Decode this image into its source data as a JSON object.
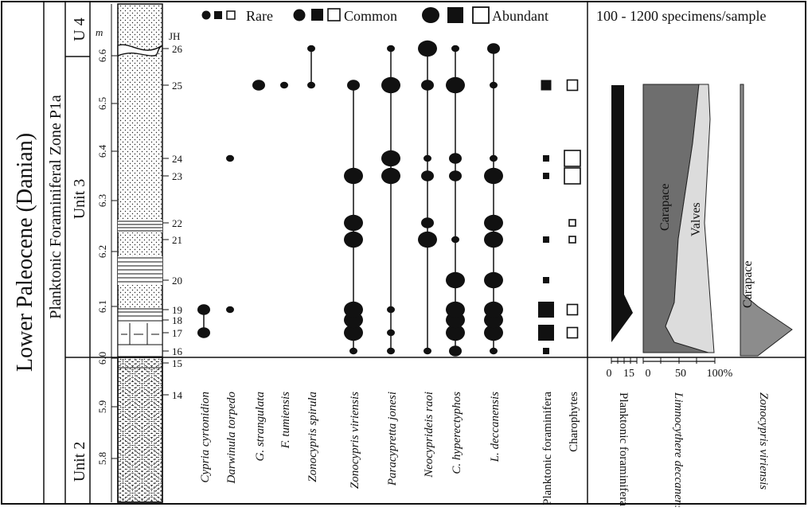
{
  "labels": {
    "epoch": "Lower Paleocene (Danian)",
    "zone": "Planktonic Foraminiferal Zone P1a",
    "unit2": "Unit 2",
    "unit3": "Unit 3",
    "unit4": "U 4",
    "meter_unit": "m",
    "jh": "JH",
    "legend_rare": "Rare",
    "legend_common": "Common",
    "legend_abundant": "Abundant",
    "specimens": "100 - 1200 specimens/sample",
    "carapace1": "Carapace",
    "valves": "Valves",
    "carapace2": "Carapace"
  },
  "depth_ticks": [
    "6.6",
    "6.5",
    "6.4",
    "6.3",
    "6.2",
    "6.1",
    "6.0",
    "5.9",
    "5.8"
  ],
  "samples": [
    "26",
    "25",
    "24",
    "23",
    "22",
    "21",
    "20",
    "19",
    "18",
    "17",
    "16",
    "15",
    "14"
  ],
  "taxa": [
    "Cypria cyrtonidion",
    "Darwinula torpedo",
    "G. strangulata",
    "F. tumiensis",
    "Zonocypris spirula",
    "Zonocypris viriensis",
    "Paracypretta jonesi",
    "Neocyprideis raoi",
    "C. hyperectyphos",
    "L. deccanensis",
    "Planktonic foraminifera",
    "Charophytes"
  ],
  "abundance": {
    "Cypria cyrtonidion": {
      "19": "common",
      "17": "common"
    },
    "Darwinula torpedo": {
      "24": "rare",
      "19": "rare"
    },
    "G. strangulata": {
      "25": "common"
    },
    "F. tumiensis": {
      "25": "rare"
    },
    "Zonocypris spirula": {
      "26": "rare",
      "25": "rare"
    },
    "Zonocypris viriensis": {
      "25": "common",
      "23": "abundant",
      "22": "abundant",
      "21": "abundant",
      "19": "abundant",
      "18": "abundant",
      "17": "abundant",
      "16": "rare"
    },
    "Paracypretta jonesi": {
      "26": "rare",
      "25": "abundant",
      "24": "abundant",
      "23": "abundant",
      "19": "rare",
      "17": "rare",
      "16": "rare"
    },
    "Neocyprideis raoi": {
      "26": "abundant",
      "25": "common",
      "24": "rare",
      "23": "common",
      "22": "common",
      "21": "abundant",
      "16": "rare"
    },
    "C. hyperectyphos": {
      "26": "rare",
      "25": "abundant",
      "24": "common",
      "23": "common",
      "21": "rare",
      "20": "abundant",
      "19": "abundant",
      "18": "abundant",
      "17": "abundant",
      "16": "common"
    },
    "L. deccanensis": {
      "26": "common",
      "25": "rare",
      "24": "rare",
      "23": "abundant",
      "22": "abundant",
      "21": "abundant",
      "20": "abundant",
      "19": "abundant",
      "18": "abundant",
      "17": "abundant",
      "16": "rare"
    },
    "Planktonic foraminifera": {
      "25": "common",
      "24": "rare",
      "23": "rare",
      "21": "rare",
      "20": "rare",
      "19": "abundant",
      "17": "abundant",
      "16": "rare"
    },
    "Charophytes": {
      "25": "common",
      "24": "abundant",
      "23": "abundant",
      "22": "rare",
      "21": "rare",
      "19": "common",
      "17": "common"
    }
  },
  "percent_axes": {
    "planktonic": [
      "0",
      "15"
    ],
    "limnocythere": [
      "0",
      "50",
      "100%"
    ]
  },
  "curve_labels": [
    "Planktonic foraminifera",
    "Limnocythere deccanensis",
    "Zonocypris viriensis"
  ],
  "colors": {
    "black": "#111111",
    "dark_gray": "#6e6e6e",
    "light_gray": "#dcdcdc",
    "mid_gray": "#8c8c8c"
  }
}
